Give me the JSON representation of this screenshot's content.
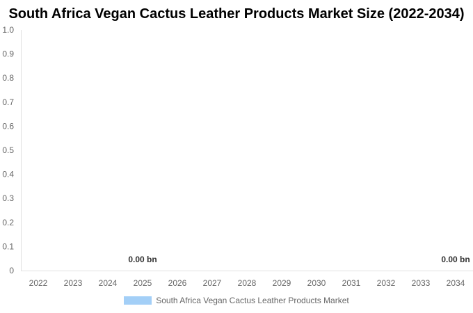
{
  "chart_data": {
    "type": "bar",
    "title": "South Africa Vegan Cactus Leather Products Market Size (2022-2034)",
    "categories": [
      "2022",
      "2023",
      "2024",
      "2025",
      "2026",
      "2027",
      "2028",
      "2029",
      "2030",
      "2031",
      "2032",
      "2033",
      "2034"
    ],
    "series": [
      {
        "name": "South Africa Vegan Cactus Leather Products Market",
        "values": [
          0,
          0,
          0,
          0,
          0,
          0,
          0,
          0,
          0,
          0,
          0,
          0,
          0
        ],
        "color": "#a3cff7"
      }
    ],
    "data_labels": [
      {
        "category": "2025",
        "text": "0.00 bn"
      },
      {
        "category": "2034",
        "text": "0.00 bn"
      }
    ],
    "y_ticks": [
      "0",
      "0.1",
      "0.2",
      "0.3",
      "0.4",
      "0.5",
      "0.6",
      "0.7",
      "0.8",
      "0.9",
      "1.0"
    ],
    "ylim": [
      0,
      1.0
    ],
    "xlabel": "",
    "ylabel": "",
    "grid": false,
    "legend_position": "bottom",
    "axis_color": "#e0e0e0"
  }
}
